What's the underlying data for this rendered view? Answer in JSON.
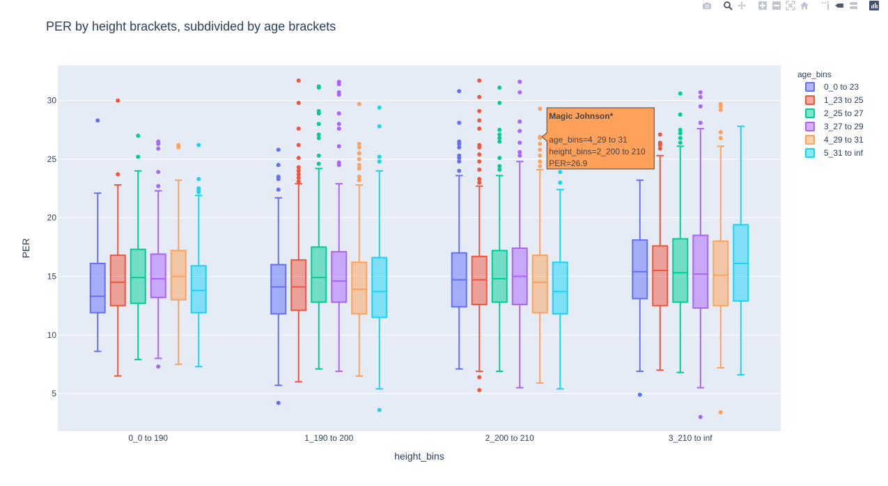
{
  "chart_data": {
    "type": "box",
    "title": "PER by height brackets, subdivided by age brackets",
    "xlabel": "height_bins",
    "ylabel": "PER",
    "ylim": [
      1.8,
      33
    ],
    "yticks": [
      5,
      10,
      15,
      20,
      25,
      30
    ],
    "categories": [
      "0_0 to 190",
      "1_190 to 200",
      "2_200 to 210",
      "3_210 to inf"
    ],
    "legend_title": "age_bins",
    "legend_position": "top-right",
    "grid": true,
    "series": [
      {
        "name": "0_0 to 23",
        "color": "#636efa",
        "boxes": [
          {
            "lowerfence": 8.6,
            "q1": 11.9,
            "median": 13.3,
            "q3": 16.1,
            "upperfence": 22.1,
            "outliers": [
              28.3
            ]
          },
          {
            "lowerfence": 5.7,
            "q1": 11.8,
            "median": 14.1,
            "q3": 16.0,
            "upperfence": 21.7,
            "outliers": [
              4.2,
              22.4,
              23.3,
              23.5,
              24.5,
              25.8
            ]
          },
          {
            "lowerfence": 7.1,
            "q1": 12.4,
            "median": 14.7,
            "q3": 17.0,
            "upperfence": 23.6,
            "outliers": [
              24.0,
              24.8,
              25.1,
              25.3,
              26.0,
              26.3,
              26.5,
              28.1,
              30.8
            ]
          },
          {
            "lowerfence": 6.9,
            "q1": 13.1,
            "median": 15.4,
            "q3": 18.1,
            "upperfence": 23.2,
            "outliers": [
              4.9
            ]
          }
        ]
      },
      {
        "name": "1_23 to 25",
        "color": "#ef553b",
        "boxes": [
          {
            "lowerfence": 6.5,
            "q1": 12.5,
            "median": 14.5,
            "q3": 16.8,
            "upperfence": 22.8,
            "outliers": [
              23.7,
              30.0
            ]
          },
          {
            "lowerfence": 6.0,
            "q1": 12.1,
            "median": 14.1,
            "q3": 16.4,
            "upperfence": 22.9,
            "outliers": [
              23.1,
              23.4,
              23.7,
              24.0,
              24.3,
              25.1,
              26.2,
              27.6,
              29.8,
              31.7
            ]
          },
          {
            "lowerfence": 6.9,
            "q1": 12.6,
            "median": 14.7,
            "q3": 16.7,
            "upperfence": 22.7,
            "outliers": [
              5.3,
              6.4,
              23.0,
              23.3,
              24.1,
              24.8,
              25.4,
              26.0,
              26.2,
              27.6,
              28.3,
              29.1,
              30.3,
              31.7
            ]
          },
          {
            "lowerfence": 7.0,
            "q1": 12.5,
            "median": 15.5,
            "q3": 17.6,
            "upperfence": 25.3,
            "outliers": [
              25.9,
              26.2,
              26.4,
              27.1
            ]
          }
        ]
      },
      {
        "name": "2_25 to 27",
        "color": "#00cc96",
        "boxes": [
          {
            "lowerfence": 7.9,
            "q1": 12.7,
            "median": 14.9,
            "q3": 17.3,
            "upperfence": 24.0,
            "outliers": [
              25.2,
              27.0
            ]
          },
          {
            "lowerfence": 7.1,
            "q1": 12.8,
            "median": 14.9,
            "q3": 17.5,
            "upperfence": 24.2,
            "outliers": [
              24.6,
              25.3,
              26.8,
              27.1,
              28.0,
              28.9,
              29.1,
              31.1,
              31.2
            ]
          },
          {
            "lowerfence": 6.9,
            "q1": 12.8,
            "median": 14.8,
            "q3": 17.2,
            "upperfence": 23.6,
            "outliers": [
              24.1,
              24.4,
              25.1,
              26.5,
              26.8,
              27.1,
              27.5,
              29.8,
              31.1
            ]
          },
          {
            "lowerfence": 6.8,
            "q1": 12.8,
            "median": 15.3,
            "q3": 18.2,
            "upperfence": 26.1,
            "outliers": [
              26.4,
              26.8,
              27.2,
              27.5,
              28.8,
              30.6
            ]
          }
        ]
      },
      {
        "name": "3_27 to 29",
        "color": "#ab63fa",
        "boxes": [
          {
            "lowerfence": 8.0,
            "q1": 13.2,
            "median": 14.8,
            "q3": 16.9,
            "upperfence": 22.3,
            "outliers": [
              7.3,
              22.7,
              23.9,
              25.9,
              26.3,
              26.5
            ]
          },
          {
            "lowerfence": 6.9,
            "q1": 12.8,
            "median": 14.6,
            "q3": 17.1,
            "upperfence": 22.9,
            "outliers": [
              24.5,
              24.7,
              26.1,
              27.6,
              28.0,
              28.9,
              30.5,
              30.7,
              31.4,
              31.6
            ]
          },
          {
            "lowerfence": 5.5,
            "q1": 12.6,
            "median": 15.0,
            "q3": 17.4,
            "upperfence": 24.8,
            "outliers": [
              25.3,
              25.6,
              26.4,
              27.4,
              28.2,
              30.7,
              31.6
            ]
          },
          {
            "lowerfence": 5.5,
            "q1": 12.3,
            "median": 15.2,
            "q3": 18.5,
            "upperfence": 27.6,
            "outliers": [
              3.0,
              28.1,
              29.5,
              30.3,
              30.7
            ]
          }
        ]
      },
      {
        "name": "4_29 to 31",
        "color": "#ffa15a",
        "boxes": [
          {
            "lowerfence": 7.5,
            "q1": 13.0,
            "median": 15.0,
            "q3": 17.2,
            "upperfence": 23.2,
            "outliers": [
              26.0,
              26.2
            ]
          },
          {
            "lowerfence": 6.5,
            "q1": 11.8,
            "median": 13.9,
            "q3": 16.2,
            "upperfence": 22.8,
            "outliers": [
              23.2,
              23.5,
              24.2,
              24.5,
              25.0,
              25.5,
              26.0,
              26.3,
              29.7
            ]
          },
          {
            "lowerfence": 5.9,
            "q1": 11.9,
            "median": 14.5,
            "q3": 16.8,
            "upperfence": 24.1,
            "outliers": [
              24.4,
              24.8,
              25.3,
              25.8,
              26.3,
              26.8,
              29.3
            ]
          },
          {
            "lowerfence": 7.2,
            "q1": 12.5,
            "median": 15.1,
            "q3": 18.0,
            "upperfence": 26.1,
            "outliers": [
              3.4,
              26.8,
              27.3,
              29.2,
              29.5,
              29.7
            ]
          }
        ]
      },
      {
        "name": "5_31 to inf",
        "color": "#19d3f3",
        "boxes": [
          {
            "lowerfence": 7.3,
            "q1": 11.9,
            "median": 13.8,
            "q3": 15.9,
            "upperfence": 21.9,
            "outliers": [
              22.2,
              22.4,
              22.5,
              23.3,
              26.2
            ]
          },
          {
            "lowerfence": 5.4,
            "q1": 11.5,
            "median": 13.7,
            "q3": 16.6,
            "upperfence": 24.0,
            "outliers": [
              3.6,
              24.8,
              25.2,
              27.8,
              29.4
            ]
          },
          {
            "lowerfence": 5.4,
            "q1": 11.8,
            "median": 13.7,
            "q3": 16.2,
            "upperfence": 22.4,
            "outliers": [
              23.0,
              23.9
            ]
          },
          {
            "lowerfence": 6.6,
            "q1": 12.9,
            "median": 16.1,
            "q3": 19.4,
            "upperfence": 27.8,
            "outliers": []
          }
        ]
      }
    ],
    "hover": {
      "category_index": 2,
      "series_index": 4,
      "value": 26.9,
      "title": "Magic Johnson*",
      "lines": [
        "age_bins=4_29 to 31",
        "height_bins=2_200 to 210",
        "PER=26.9"
      ]
    }
  },
  "modebar": {
    "icons": [
      "camera-icon",
      "zoom-icon",
      "pan-icon",
      "zoom-in-icon",
      "zoom-out-icon",
      "autoscale-icon",
      "home-icon",
      "spike-lines-icon",
      "hover-closest-icon",
      "hover-compare-icon",
      "plotly-logo-icon"
    ]
  }
}
